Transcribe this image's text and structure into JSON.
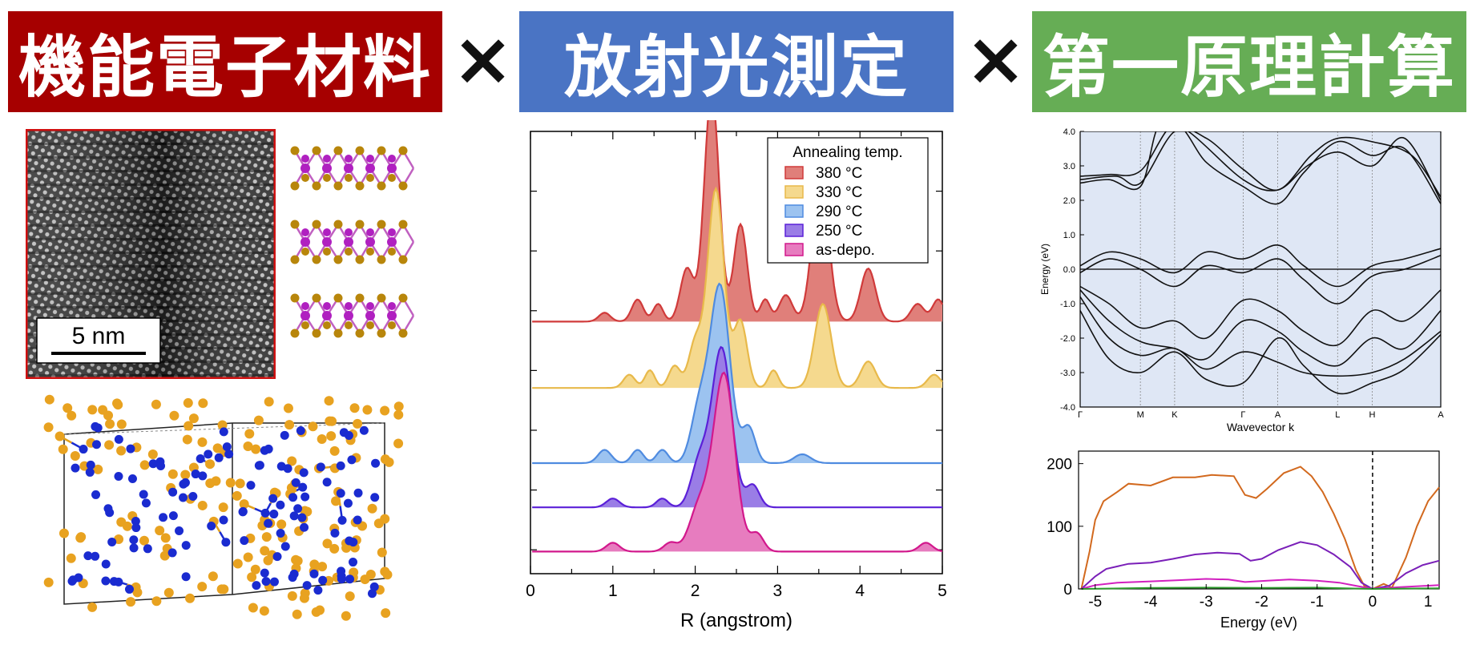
{
  "banners": [
    {
      "title": "機能電子材料",
      "color": "#a60000"
    },
    {
      "title": "放射光測定",
      "color": "#4a74c4"
    },
    {
      "title": "第一原理計算",
      "color": "#66ad55"
    }
  ],
  "separator": "×",
  "tem": {
    "scale_label": "5 nm"
  },
  "chart_data": [
    {
      "type": "area",
      "xlabel": "R (angstrom)",
      "xlim": [
        0,
        5
      ],
      "x_ticks": [
        "0",
        "1",
        "2",
        "3",
        "4",
        "5"
      ],
      "legend": {
        "title": "Annealing temp.",
        "placement": "top-right",
        "entries": [
          {
            "name": "380 °C",
            "stroke": "#d03a3a",
            "fill": "#e07f7a"
          },
          {
            "name": "330 °C",
            "stroke": "#e8b94a",
            "fill": "#f5d98e"
          },
          {
            "name": "290 °C",
            "stroke": "#4f8be0",
            "fill": "#9cc3f0"
          },
          {
            "name": "250 °C",
            "stroke": "#5b20d8",
            "fill": "#9a7de6"
          },
          {
            "name": "as-depo.",
            "stroke": "#d2188c",
            "fill": "#e77cbf"
          }
        ]
      },
      "series": [
        {
          "name": "380 °C",
          "offset": 0.52,
          "peaks": [
            [
              0.9,
              0.02,
              0.07
            ],
            [
              1.3,
              0.05,
              0.07
            ],
            [
              1.55,
              0.04,
              0.06
            ],
            [
              1.9,
              0.12,
              0.08
            ],
            [
              2.2,
              0.52,
              0.09
            ],
            [
              2.55,
              0.22,
              0.08
            ],
            [
              2.85,
              0.05,
              0.06
            ],
            [
              3.1,
              0.06,
              0.08
            ],
            [
              3.52,
              0.32,
              0.1
            ],
            [
              4.1,
              0.12,
              0.09
            ],
            [
              4.7,
              0.04,
              0.08
            ],
            [
              4.95,
              0.05,
              0.07
            ]
          ]
        },
        {
          "name": "330 °C",
          "offset": 0.37,
          "peaks": [
            [
              1.2,
              0.03,
              0.07
            ],
            [
              1.45,
              0.04,
              0.06
            ],
            [
              1.75,
              0.05,
              0.07
            ],
            [
              2.0,
              0.1,
              0.08
            ],
            [
              2.25,
              0.45,
              0.1
            ],
            [
              2.55,
              0.15,
              0.08
            ],
            [
              2.95,
              0.04,
              0.06
            ],
            [
              3.55,
              0.19,
              0.1
            ],
            [
              4.1,
              0.06,
              0.09
            ],
            [
              4.9,
              0.03,
              0.08
            ]
          ]
        },
        {
          "name": "290 °C",
          "offset": 0.2,
          "peaks": [
            [
              0.9,
              0.03,
              0.08
            ],
            [
              1.3,
              0.03,
              0.07
            ],
            [
              1.6,
              0.03,
              0.07
            ],
            [
              2.05,
              0.12,
              0.1
            ],
            [
              2.3,
              0.4,
              0.12
            ],
            [
              2.65,
              0.08,
              0.08
            ],
            [
              3.3,
              0.02,
              0.1
            ]
          ]
        },
        {
          "name": "250 °C",
          "offset": 0.1,
          "peaks": [
            [
              1.0,
              0.02,
              0.08
            ],
            [
              1.6,
              0.02,
              0.07
            ],
            [
              2.05,
              0.1,
              0.1
            ],
            [
              2.32,
              0.36,
              0.12
            ],
            [
              2.7,
              0.05,
              0.08
            ]
          ]
        },
        {
          "name": "as-depo.",
          "offset": 0.0,
          "peaks": [
            [
              1.0,
              0.02,
              0.08
            ],
            [
              1.7,
              0.02,
              0.08
            ],
            [
              2.05,
              0.1,
              0.12
            ],
            [
              2.35,
              0.4,
              0.13
            ],
            [
              2.75,
              0.04,
              0.08
            ],
            [
              4.8,
              0.02,
              0.08
            ]
          ]
        }
      ]
    },
    {
      "type": "line",
      "xlabel": "Wavevector k",
      "ylabel": "Energy (eV)",
      "ylim": [
        -4.0,
        4.0
      ],
      "y_ticks": [
        "4.0",
        "3.0",
        "2.0",
        "1.0",
        "0.0",
        "-1.0",
        "-2.0",
        "-3.0",
        "-4.0"
      ],
      "k_labels": [
        {
          "label": "Γ",
          "k": 0.0
        },
        {
          "label": "M",
          "k": 0.167
        },
        {
          "label": "K",
          "k": 0.262
        },
        {
          "label": "Γ",
          "k": 0.452
        },
        {
          "label": "A",
          "k": 0.548
        },
        {
          "label": "L",
          "k": 0.714
        },
        {
          "label": "H",
          "k": 0.81
        },
        {
          "label": "A",
          "k": 1.0
        }
      ],
      "bands": [
        [
          [
            0,
            2.7
          ],
          [
            0.08,
            2.75
          ],
          [
            0.167,
            2.85
          ],
          [
            0.262,
            4.2
          ],
          [
            0.35,
            3.1
          ],
          [
            0.452,
            2.4
          ],
          [
            0.548,
            1.9
          ],
          [
            0.62,
            2.8
          ],
          [
            0.714,
            3.7
          ],
          [
            0.81,
            3.3
          ],
          [
            0.9,
            3.5
          ],
          [
            1.0,
            1.9
          ]
        ],
        [
          [
            0,
            2.5
          ],
          [
            0.08,
            2.6
          ],
          [
            0.167,
            2.4
          ],
          [
            0.22,
            4.2
          ],
          [
            0.3,
            4.0
          ],
          [
            0.452,
            2.6
          ],
          [
            0.548,
            2.3
          ],
          [
            0.63,
            3.0
          ],
          [
            0.714,
            3.4
          ],
          [
            0.81,
            3.0
          ],
          [
            0.9,
            3.8
          ],
          [
            1.0,
            2.0
          ]
        ],
        [
          [
            0,
            2.6
          ],
          [
            0.1,
            2.7
          ],
          [
            0.167,
            2.5
          ],
          [
            0.262,
            4.0
          ],
          [
            0.35,
            3.8
          ],
          [
            0.452,
            2.9
          ],
          [
            0.548,
            2.3
          ],
          [
            0.64,
            3.3
          ],
          [
            0.714,
            3.8
          ],
          [
            0.81,
            3.7
          ],
          [
            0.92,
            3.3
          ],
          [
            1.0,
            2.1
          ]
        ],
        [
          [
            0,
            0.1
          ],
          [
            0.08,
            0.5
          ],
          [
            0.167,
            0.3
          ],
          [
            0.262,
            -0.1
          ],
          [
            0.35,
            0.5
          ],
          [
            0.452,
            0.3
          ],
          [
            0.548,
            0.7
          ],
          [
            0.62,
            0.1
          ],
          [
            0.714,
            -0.5
          ],
          [
            0.81,
            0.1
          ],
          [
            0.9,
            0.3
          ],
          [
            1.0,
            0.6
          ]
        ],
        [
          [
            0,
            -0.1
          ],
          [
            0.08,
            0.3
          ],
          [
            0.167,
            0.0
          ],
          [
            0.262,
            -0.5
          ],
          [
            0.35,
            0.1
          ],
          [
            0.452,
            -0.1
          ],
          [
            0.548,
            0.3
          ],
          [
            0.62,
            -0.3
          ],
          [
            0.714,
            -1.0
          ],
          [
            0.81,
            -0.2
          ],
          [
            0.9,
            0.0
          ],
          [
            1.0,
            0.4
          ]
        ],
        [
          [
            0,
            -0.5
          ],
          [
            0.08,
            -1.0
          ],
          [
            0.167,
            -1.7
          ],
          [
            0.262,
            -1.5
          ],
          [
            0.35,
            -2.0
          ],
          [
            0.452,
            -0.9
          ],
          [
            0.548,
            -1.2
          ],
          [
            0.62,
            -1.8
          ],
          [
            0.714,
            -2.2
          ],
          [
            0.81,
            -1.2
          ],
          [
            0.9,
            -1.5
          ],
          [
            1.0,
            -0.6
          ]
        ],
        [
          [
            0,
            -0.6
          ],
          [
            0.08,
            -1.5
          ],
          [
            0.167,
            -2.1
          ],
          [
            0.262,
            -2.3
          ],
          [
            0.35,
            -2.6
          ],
          [
            0.452,
            -1.5
          ],
          [
            0.548,
            -1.8
          ],
          [
            0.62,
            -2.4
          ],
          [
            0.714,
            -2.8
          ],
          [
            0.81,
            -2.0
          ],
          [
            0.9,
            -2.3
          ],
          [
            1.0,
            -1.2
          ]
        ],
        [
          [
            0,
            -0.8
          ],
          [
            0.08,
            -2.0
          ],
          [
            0.167,
            -2.5
          ],
          [
            0.262,
            -2.3
          ],
          [
            0.35,
            -2.9
          ],
          [
            0.452,
            -2.4
          ],
          [
            0.548,
            -2.7
          ],
          [
            0.62,
            -3.0
          ],
          [
            0.714,
            -3.1
          ],
          [
            0.81,
            -3.0
          ],
          [
            0.9,
            -2.6
          ],
          [
            1.0,
            -1.8
          ]
        ],
        [
          [
            0,
            -1.2
          ],
          [
            0.08,
            -2.6
          ],
          [
            0.167,
            -3.0
          ],
          [
            0.262,
            -2.4
          ],
          [
            0.35,
            -3.2
          ],
          [
            0.452,
            -3.3
          ],
          [
            0.548,
            -2.0
          ],
          [
            0.62,
            -2.8
          ],
          [
            0.714,
            -3.6
          ],
          [
            0.81,
            -3.3
          ],
          [
            0.9,
            -2.9
          ],
          [
            1.0,
            -1.9
          ]
        ]
      ]
    },
    {
      "type": "line",
      "xlabel": "Energy (eV)",
      "xlim": [
        -5.3,
        1.2
      ],
      "ylim": [
        0,
        220
      ],
      "x_ticks": [
        "-5",
        "-4",
        "-3",
        "-2",
        "-1",
        "0",
        "1"
      ],
      "y_ticks": [
        "0",
        "100",
        "200"
      ],
      "series": [
        {
          "name": "orange",
          "color": "#d2691e",
          "points": [
            [
              -5.25,
              0
            ],
            [
              -5.1,
              60
            ],
            [
              -5.0,
              110
            ],
            [
              -4.85,
              140
            ],
            [
              -4.6,
              155
            ],
            [
              -4.4,
              168
            ],
            [
              -4.0,
              165
            ],
            [
              -3.6,
              178
            ],
            [
              -3.2,
              178
            ],
            [
              -2.9,
              182
            ],
            [
              -2.5,
              180
            ],
            [
              -2.3,
              150
            ],
            [
              -2.1,
              145
            ],
            [
              -1.9,
              160
            ],
            [
              -1.6,
              185
            ],
            [
              -1.3,
              195
            ],
            [
              -1.1,
              180
            ],
            [
              -0.9,
              155
            ],
            [
              -0.7,
              120
            ],
            [
              -0.5,
              80
            ],
            [
              -0.3,
              30
            ],
            [
              -0.15,
              5
            ],
            [
              0.0,
              0
            ],
            [
              0.2,
              8
            ],
            [
              0.35,
              2
            ],
            [
              0.6,
              50
            ],
            [
              0.8,
              100
            ],
            [
              1.0,
              140
            ],
            [
              1.2,
              162
            ]
          ]
        },
        {
          "name": "purple",
          "color": "#7a1fb8",
          "points": [
            [
              -5.25,
              0
            ],
            [
              -5.0,
              20
            ],
            [
              -4.8,
              32
            ],
            [
              -4.4,
              40
            ],
            [
              -4.0,
              42
            ],
            [
              -3.6,
              48
            ],
            [
              -3.2,
              55
            ],
            [
              -2.8,
              58
            ],
            [
              -2.4,
              56
            ],
            [
              -2.2,
              45
            ],
            [
              -2.0,
              48
            ],
            [
              -1.7,
              62
            ],
            [
              -1.3,
              75
            ],
            [
              -1.0,
              70
            ],
            [
              -0.7,
              55
            ],
            [
              -0.4,
              35
            ],
            [
              -0.2,
              10
            ],
            [
              0.0,
              0
            ],
            [
              0.3,
              5
            ],
            [
              0.6,
              25
            ],
            [
              0.9,
              38
            ],
            [
              1.2,
              45
            ]
          ]
        },
        {
          "name": "magenta",
          "color": "#d21fbf",
          "points": [
            [
              -5.25,
              0
            ],
            [
              -5.0,
              6
            ],
            [
              -4.6,
              10
            ],
            [
              -4.0,
              12
            ],
            [
              -3.5,
              14
            ],
            [
              -3.0,
              16
            ],
            [
              -2.6,
              15
            ],
            [
              -2.3,
              11
            ],
            [
              -1.9,
              13
            ],
            [
              -1.5,
              15
            ],
            [
              -1.0,
              13
            ],
            [
              -0.6,
              10
            ],
            [
              -0.3,
              5
            ],
            [
              0.0,
              0
            ],
            [
              0.5,
              3
            ],
            [
              1.2,
              6
            ]
          ]
        },
        {
          "name": "green",
          "color": "#2c9a2c",
          "points": [
            [
              -5.25,
              0
            ],
            [
              -4.0,
              1.5
            ],
            [
              -3.0,
              2
            ],
            [
              -2.0,
              1.5
            ],
            [
              -1.0,
              2
            ],
            [
              0.0,
              0
            ],
            [
              1.2,
              1
            ]
          ]
        }
      ]
    }
  ]
}
